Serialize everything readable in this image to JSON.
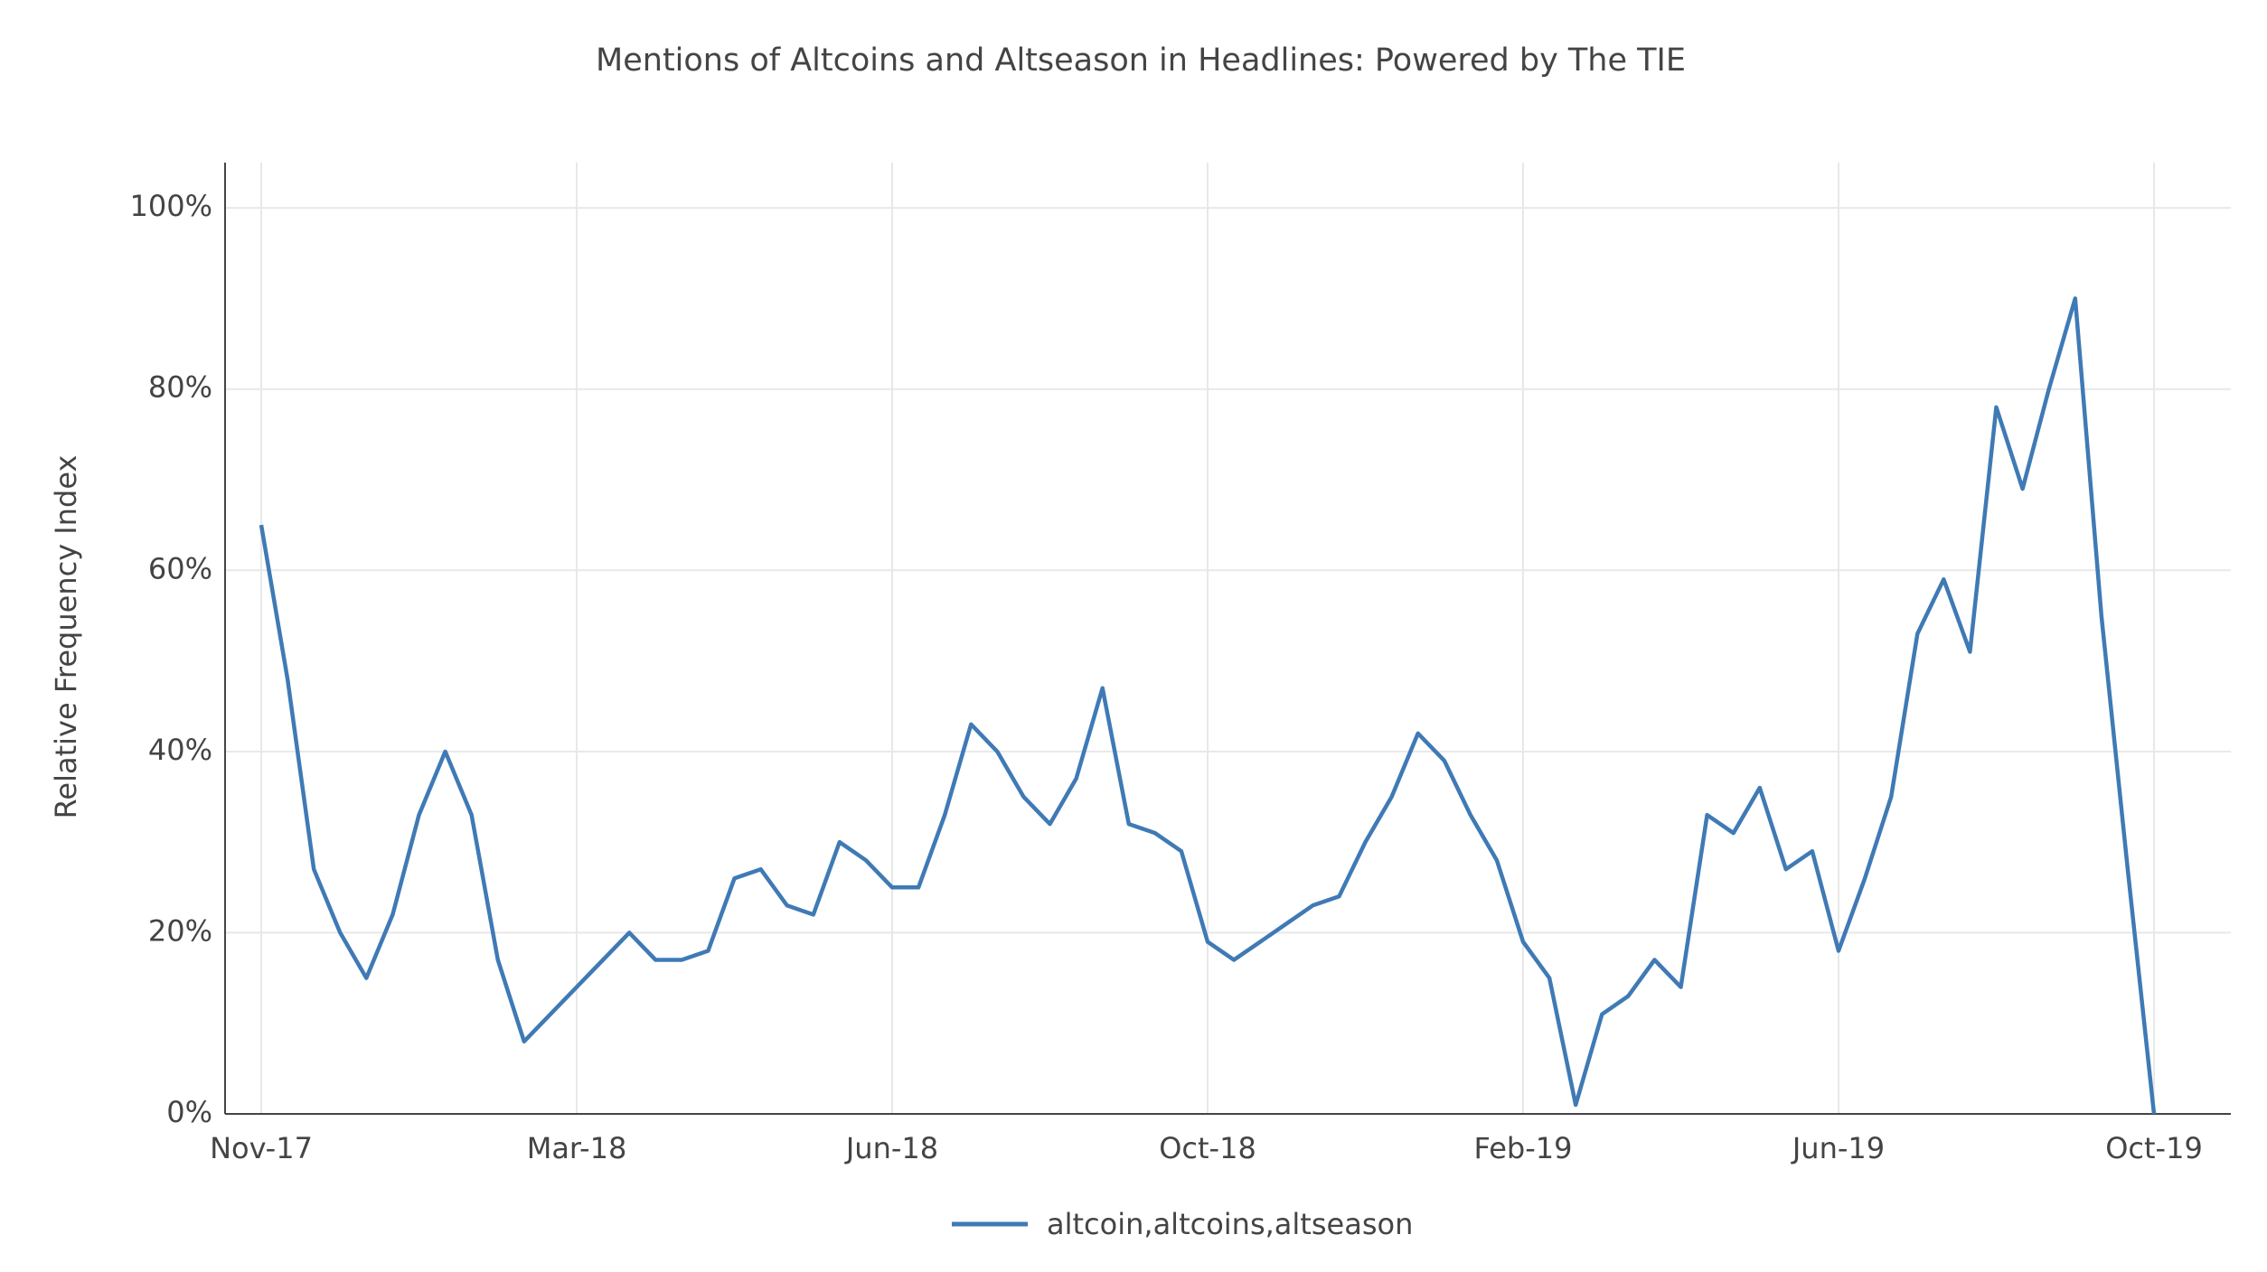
{
  "chart_data": {
    "type": "line",
    "title": "Mentions of Altcoins and Altseason in Headlines: Powered by The TIE",
    "y_label": "Relative Frequency Index",
    "categories": [
      "Nov-17",
      null,
      null,
      null,
      null,
      null,
      null,
      null,
      null,
      null,
      null,
      null,
      "Mar-18",
      null,
      null,
      null,
      null,
      null,
      null,
      null,
      null,
      null,
      null,
      null,
      "Jun-18",
      null,
      null,
      null,
      null,
      null,
      null,
      null,
      null,
      null,
      null,
      null,
      "Oct-18",
      null,
      null,
      null,
      null,
      null,
      null,
      null,
      null,
      null,
      null,
      null,
      "Feb-19",
      null,
      null,
      null,
      null,
      null,
      null,
      null,
      null,
      null,
      null,
      null,
      "Jun-19",
      null,
      null,
      null,
      null,
      null,
      null,
      null,
      null,
      null,
      null,
      null,
      "Oct-19"
    ],
    "series": [
      {
        "name": "altcoin,altcoins,altseason",
        "color": "#3f7ab5",
        "values": [
          65,
          48,
          27,
          20,
          15,
          22,
          33,
          40,
          33,
          17,
          8,
          11,
          14,
          17,
          20,
          17,
          17,
          18,
          26,
          27,
          23,
          22,
          30,
          28,
          25,
          25,
          33,
          43,
          40,
          35,
          32,
          37,
          47,
          32,
          31,
          29,
          19,
          17,
          19,
          21,
          23,
          24,
          30,
          35,
          42,
          39,
          33,
          28,
          19,
          15,
          1,
          11,
          13,
          17,
          14,
          33,
          31,
          36,
          27,
          29,
          18,
          26,
          35,
          53,
          59,
          51,
          78,
          69,
          80,
          90,
          55,
          27,
          0
        ]
      }
    ],
    "ylim": [
      0,
      105
    ],
    "yticks": [
      {
        "value": 0,
        "label": "0%"
      },
      {
        "value": 20,
        "label": "20%"
      },
      {
        "value": 40,
        "label": "40%"
      },
      {
        "value": 60,
        "label": "60%"
      },
      {
        "value": 80,
        "label": "80%"
      },
      {
        "value": 100,
        "label": "100%"
      }
    ],
    "grid": true,
    "legend": "bottom"
  }
}
